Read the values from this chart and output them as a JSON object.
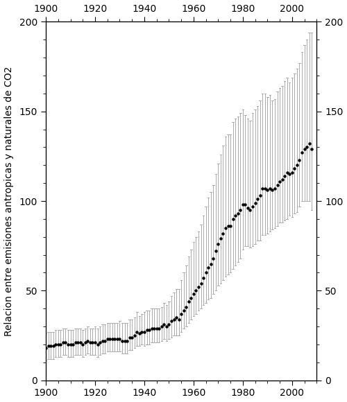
{
  "title": "",
  "ylabel_left": "Relacion entre emisiones antropicas y naturales de CO2",
  "xlim": [
    1900,
    2010
  ],
  "ylim": [
    0,
    200
  ],
  "xticks": [
    1900,
    1920,
    1940,
    1960,
    1980,
    2000
  ],
  "yticks": [
    0,
    50,
    100,
    150,
    200
  ],
  "background_color": "#ffffff",
  "dot_color": "#000000",
  "years": [
    1900,
    1901,
    1902,
    1903,
    1904,
    1905,
    1906,
    1907,
    1908,
    1909,
    1910,
    1911,
    1912,
    1913,
    1914,
    1915,
    1916,
    1917,
    1918,
    1919,
    1920,
    1921,
    1922,
    1923,
    1924,
    1925,
    1926,
    1927,
    1928,
    1929,
    1930,
    1931,
    1932,
    1933,
    1934,
    1935,
    1936,
    1937,
    1938,
    1939,
    1940,
    1941,
    1942,
    1943,
    1944,
    1945,
    1946,
    1947,
    1948,
    1949,
    1950,
    1951,
    1952,
    1953,
    1954,
    1955,
    1956,
    1957,
    1958,
    1959,
    1960,
    1961,
    1962,
    1963,
    1964,
    1965,
    1966,
    1967,
    1968,
    1969,
    1970,
    1971,
    1972,
    1973,
    1974,
    1975,
    1976,
    1977,
    1978,
    1979,
    1980,
    1981,
    1982,
    1983,
    1984,
    1985,
    1986,
    1987,
    1988,
    1989,
    1990,
    1991,
    1992,
    1993,
    1994,
    1995,
    1996,
    1997,
    1998,
    1999,
    2000,
    2001,
    2002,
    2003,
    2004,
    2005,
    2006,
    2007,
    2008
  ],
  "values": [
    18,
    19,
    19,
    19,
    20,
    20,
    20,
    21,
    21,
    20,
    20,
    20,
    21,
    21,
    21,
    20,
    21,
    22,
    21,
    21,
    21,
    20,
    21,
    22,
    22,
    23,
    23,
    23,
    23,
    23,
    23,
    22,
    22,
    22,
    24,
    24,
    25,
    27,
    26,
    27,
    27,
    28,
    28,
    29,
    29,
    29,
    29,
    30,
    31,
    30,
    31,
    33,
    34,
    35,
    34,
    37,
    39,
    41,
    44,
    46,
    48,
    50,
    52,
    54,
    57,
    60,
    63,
    65,
    68,
    72,
    76,
    79,
    82,
    85,
    86,
    86,
    90,
    92,
    93,
    95,
    98,
    98,
    96,
    95,
    97,
    99,
    101,
    103,
    107,
    107,
    106,
    107,
    106,
    107,
    109,
    111,
    112,
    114,
    116,
    115,
    116,
    118,
    120,
    123,
    127,
    129,
    130,
    132,
    129
  ],
  "yerr_upper": [
    8,
    8,
    8,
    8,
    8,
    8,
    8,
    8,
    8,
    8,
    8,
    8,
    8,
    8,
    8,
    8,
    8,
    8,
    8,
    8,
    9,
    9,
    9,
    9,
    9,
    9,
    9,
    9,
    9,
    9,
    10,
    10,
    10,
    10,
    10,
    10,
    10,
    11,
    10,
    10,
    11,
    11,
    11,
    11,
    11,
    11,
    11,
    11,
    12,
    12,
    13,
    14,
    15,
    16,
    17,
    19,
    21,
    23,
    25,
    27,
    29,
    30,
    31,
    33,
    35,
    37,
    39,
    40,
    41,
    43,
    45,
    47,
    49,
    51,
    51,
    51,
    54,
    54,
    54,
    54,
    53,
    50,
    50,
    50,
    52,
    52,
    52,
    53,
    53,
    53,
    52,
    52,
    50,
    50,
    52,
    52,
    52,
    53,
    53,
    51,
    53,
    53,
    54,
    54,
    56,
    58,
    60,
    62,
    65
  ],
  "yerr_lower": [
    7,
    7,
    7,
    7,
    7,
    7,
    7,
    7,
    7,
    7,
    7,
    7,
    7,
    7,
    7,
    7,
    7,
    7,
    7,
    7,
    7,
    7,
    7,
    7,
    7,
    7,
    7,
    7,
    7,
    7,
    7,
    7,
    7,
    7,
    7,
    7,
    7,
    8,
    7,
    7,
    8,
    8,
    8,
    8,
    8,
    8,
    8,
    8,
    8,
    8,
    8,
    9,
    9,
    10,
    9,
    10,
    10,
    11,
    12,
    12,
    12,
    13,
    13,
    14,
    15,
    17,
    18,
    19,
    20,
    22,
    23,
    25,
    26,
    27,
    27,
    26,
    28,
    28,
    27,
    27,
    25,
    23,
    21,
    21,
    22,
    23,
    23,
    25,
    26,
    26,
    24,
    24,
    22,
    22,
    23,
    23,
    24,
    25,
    26,
    23,
    25,
    25,
    26,
    26,
    27,
    29,
    30,
    32,
    34
  ]
}
